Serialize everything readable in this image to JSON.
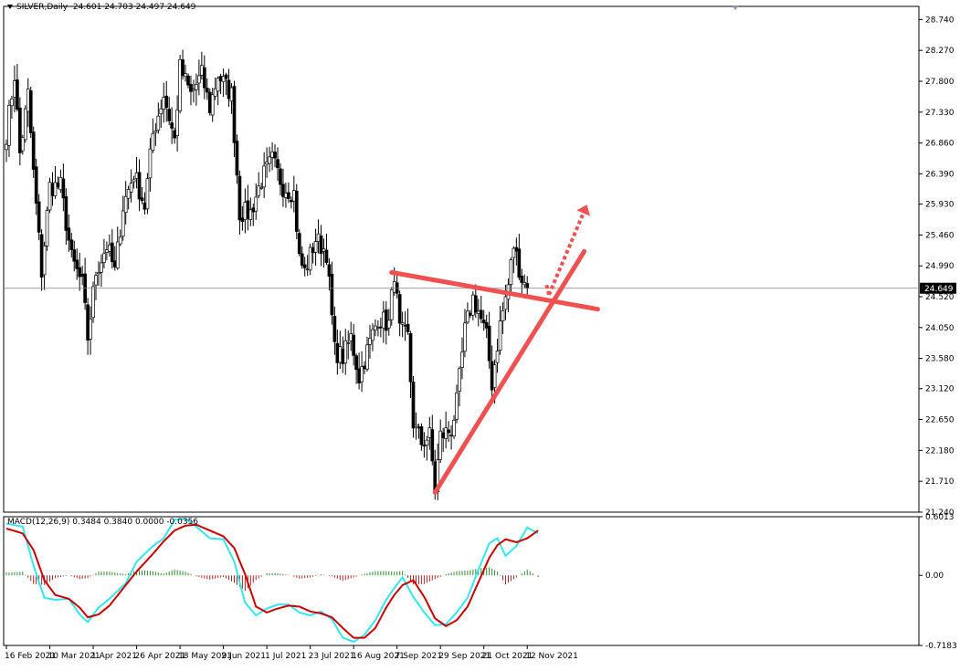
{
  "header": {
    "symbol_label": "SILVER,Daily",
    "ohlc_text": "24.601 24.703 24.497 24.649"
  },
  "macd_header": {
    "label": "MACD(12,26,9)",
    "values_text": "0.3484 0.3840 0.0000 -0.0356"
  },
  "colors": {
    "background": "#ffffff",
    "bull_body": "#ffffff",
    "bear_body": "#000000",
    "candle_outline": "#000000",
    "trendline": "#f05050",
    "arrow": "#f05050",
    "macd_main": "#33e6f0",
    "macd_signal": "#cc0000",
    "hist_positive": "#2e8b2e",
    "hist_negative": "#b22222",
    "price_line": "#808080",
    "current_price_bg": "#000000"
  },
  "chart_data": [
    {
      "type": "candlestick",
      "title": "SILVER,Daily",
      "current_price": 24.649,
      "current_price_label": "24.649",
      "ylim": [
        21.24,
        28.94
      ],
      "y_ticks": [
        "28.740",
        "28.270",
        "27.800",
        "27.330",
        "26.860",
        "26.390",
        "25.930",
        "25.460",
        "24.990",
        "24.520",
        "24.050",
        "23.580",
        "23.120",
        "22.650",
        "22.180",
        "21.710",
        "21.240"
      ],
      "x_ticks": [
        "16 Feb 2021",
        "10 Mar 2021",
        "1 Apr 2021",
        "26 Apr 2021",
        "18 May 2021",
        "9 Jun 2021",
        "1 Jul 2021",
        "23 Jul 2021",
        "16 Aug 2021",
        "7 Sep 2021",
        "29 Sep 2021",
        "21 Oct 2021",
        "12 Nov 2021"
      ],
      "x_tick_index": [
        0,
        16,
        32,
        48,
        64,
        80,
        96,
        112,
        128,
        144,
        160,
        176,
        192
      ],
      "anchors": [
        [
          0,
          27.0
        ],
        [
          3,
          27.9
        ],
        [
          5,
          26.7
        ],
        [
          8,
          27.6
        ],
        [
          10,
          26.4
        ],
        [
          13,
          24.9
        ],
        [
          16,
          26.2
        ],
        [
          20,
          26.2
        ],
        [
          24,
          25.1
        ],
        [
          28,
          24.7
        ],
        [
          30,
          23.9
        ],
        [
          33,
          24.9
        ],
        [
          37,
          25.3
        ],
        [
          40,
          24.9
        ],
        [
          43,
          25.9
        ],
        [
          47,
          26.4
        ],
        [
          51,
          25.9
        ],
        [
          54,
          27.0
        ],
        [
          58,
          27.6
        ],
        [
          62,
          26.9
        ],
        [
          64,
          28.0
        ],
        [
          68,
          27.6
        ],
        [
          72,
          27.9
        ],
        [
          75,
          27.4
        ],
        [
          78,
          27.9
        ],
        [
          83,
          27.6
        ],
        [
          86,
          25.8
        ],
        [
          90,
          25.8
        ],
        [
          94,
          26.3
        ],
        [
          98,
          26.6
        ],
        [
          102,
          26.2
        ],
        [
          106,
          26.1
        ],
        [
          108,
          25.1
        ],
        [
          110,
          24.9
        ],
        [
          114,
          25.4
        ],
        [
          118,
          25.2
        ],
        [
          121,
          23.7
        ],
        [
          124,
          23.6
        ],
        [
          127,
          23.9
        ],
        [
          130,
          23.3
        ],
        [
          133,
          23.7
        ],
        [
          137,
          24.2
        ],
        [
          141,
          24.1
        ],
        [
          143,
          24.9
        ],
        [
          145,
          24.0
        ],
        [
          148,
          23.9
        ],
        [
          150,
          22.6
        ],
        [
          153,
          22.3
        ],
        [
          156,
          22.4
        ],
        [
          158,
          21.6
        ],
        [
          160,
          22.4
        ],
        [
          164,
          22.5
        ],
        [
          166,
          22.9
        ],
        [
          169,
          24.0
        ],
        [
          172,
          24.5
        ],
        [
          174,
          24.3
        ],
        [
          177,
          23.9
        ],
        [
          179,
          23.2
        ],
        [
          182,
          24.1
        ],
        [
          185,
          24.7
        ],
        [
          187,
          25.3
        ],
        [
          190,
          24.8
        ],
        [
          192,
          24.649
        ]
      ],
      "trendlines": [
        {
          "from": [
            142,
            24.89
          ],
          "to": [
            218,
            24.33
          ]
        },
        {
          "from": [
            158,
            21.54
          ],
          "to": [
            213,
            25.21
          ]
        }
      ],
      "projection_arrow": {
        "from": [
          200,
          24.55
        ],
        "to": [
          214,
          25.92
        ]
      }
    },
    {
      "type": "macd",
      "params": "MACD(12,26,9)",
      "ylim": [
        -0.7183,
        0.6013
      ],
      "y_ticks": [
        "0.6013",
        "0.00",
        "-0.7183"
      ],
      "main_anchors": [
        [
          0,
          0.53
        ],
        [
          6,
          0.5
        ],
        [
          10,
          0.1
        ],
        [
          14,
          -0.23
        ],
        [
          18,
          -0.25
        ],
        [
          23,
          -0.24
        ],
        [
          27,
          -0.4
        ],
        [
          30,
          -0.48
        ],
        [
          34,
          -0.33
        ],
        [
          38,
          -0.24
        ],
        [
          44,
          -0.08
        ],
        [
          48,
          0.14
        ],
        [
          54,
          0.3
        ],
        [
          58,
          0.38
        ],
        [
          62,
          0.57
        ],
        [
          66,
          0.58
        ],
        [
          70,
          0.5
        ],
        [
          75,
          0.38
        ],
        [
          80,
          0.37
        ],
        [
          84,
          0.14
        ],
        [
          88,
          -0.28
        ],
        [
          92,
          -0.41
        ],
        [
          96,
          -0.34
        ],
        [
          100,
          -0.3
        ],
        [
          104,
          -0.3
        ],
        [
          108,
          -0.38
        ],
        [
          112,
          -0.41
        ],
        [
          116,
          -0.37
        ],
        [
          120,
          -0.45
        ],
        [
          124,
          -0.64
        ],
        [
          128,
          -0.68
        ],
        [
          132,
          -0.61
        ],
        [
          136,
          -0.46
        ],
        [
          140,
          -0.25
        ],
        [
          143,
          -0.13
        ],
        [
          146,
          -0.02
        ],
        [
          150,
          -0.22
        ],
        [
          154,
          -0.38
        ],
        [
          158,
          -0.51
        ],
        [
          162,
          -0.5
        ],
        [
          166,
          -0.38
        ],
        [
          170,
          -0.23
        ],
        [
          174,
          0.06
        ],
        [
          178,
          0.33
        ],
        [
          181,
          0.38
        ],
        [
          184,
          0.2
        ],
        [
          188,
          0.3
        ],
        [
          192,
          0.49
        ],
        [
          196,
          0.43
        ]
      ],
      "signal_anchors": [
        [
          0,
          0.48
        ],
        [
          6,
          0.43
        ],
        [
          10,
          0.26
        ],
        [
          14,
          -0.05
        ],
        [
          18,
          -0.2
        ],
        [
          23,
          -0.24
        ],
        [
          27,
          -0.33
        ],
        [
          30,
          -0.43
        ],
        [
          34,
          -0.4
        ],
        [
          38,
          -0.31
        ],
        [
          44,
          -0.1
        ],
        [
          48,
          0.04
        ],
        [
          54,
          0.22
        ],
        [
          58,
          0.35
        ],
        [
          62,
          0.46
        ],
        [
          66,
          0.51
        ],
        [
          70,
          0.52
        ],
        [
          75,
          0.46
        ],
        [
          80,
          0.4
        ],
        [
          84,
          0.28
        ],
        [
          88,
          0.01
        ],
        [
          92,
          -0.32
        ],
        [
          96,
          -0.38
        ],
        [
          100,
          -0.34
        ],
        [
          104,
          -0.31
        ],
        [
          108,
          -0.32
        ],
        [
          112,
          -0.37
        ],
        [
          116,
          -0.39
        ],
        [
          120,
          -0.43
        ],
        [
          124,
          -0.54
        ],
        [
          128,
          -0.64
        ],
        [
          132,
          -0.64
        ],
        [
          136,
          -0.54
        ],
        [
          140,
          -0.33
        ],
        [
          143,
          -0.2
        ],
        [
          146,
          -0.1
        ],
        [
          150,
          -0.05
        ],
        [
          154,
          -0.22
        ],
        [
          158,
          -0.44
        ],
        [
          162,
          -0.52
        ],
        [
          166,
          -0.46
        ],
        [
          170,
          -0.32
        ],
        [
          174,
          -0.07
        ],
        [
          178,
          0.18
        ],
        [
          181,
          0.31
        ],
        [
          184,
          0.37
        ],
        [
          188,
          0.34
        ],
        [
          192,
          0.38
        ],
        [
          196,
          0.46
        ]
      ]
    }
  ]
}
